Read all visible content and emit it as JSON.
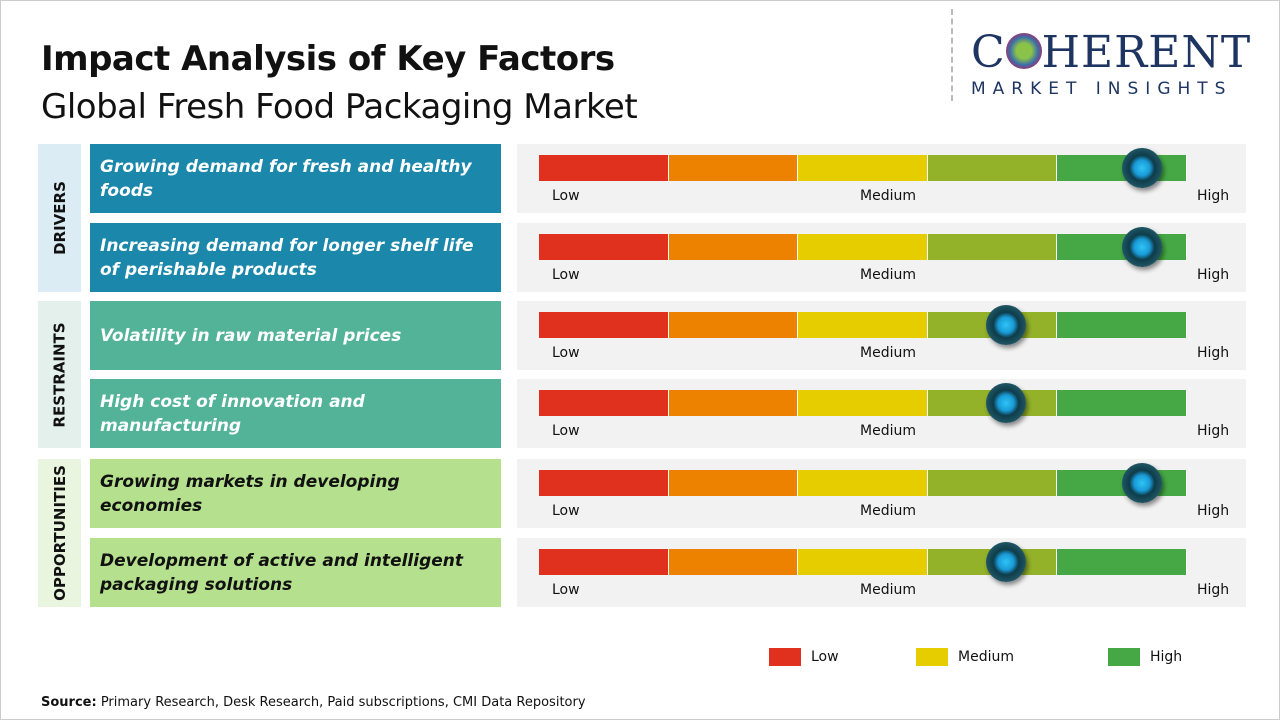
{
  "header": {
    "title": "Impact Analysis of Key Factors",
    "subtitle": "Global Fresh Food Packaging Market"
  },
  "logo": {
    "line1": "COHERENT",
    "line2": "MARKET INSIGHTS"
  },
  "chart_data": {
    "type": "table",
    "scale_labels": [
      "Low",
      "Medium",
      "High"
    ],
    "segment_colors": [
      "#e0301e",
      "#ec8200",
      "#e6cd00",
      "#94b12a",
      "#45a845"
    ],
    "categories": [
      {
        "name": "DRIVERS",
        "bg": "#dcecf4",
        "box_color": "#1a87ab",
        "text_color": "#ffffff",
        "factors": [
          {
            "label": "Growing demand for fresh and healthy foods",
            "impact": 0.93,
            "level": "High"
          },
          {
            "label": "Increasing demand for longer shelf life of perishable products",
            "impact": 0.93,
            "level": "High"
          }
        ]
      },
      {
        "name": "RESTRAINTS",
        "bg": "#e3f0ec",
        "box_color": "#52b399",
        "text_color": "#ffffff",
        "factors": [
          {
            "label": "Volatility in raw material prices",
            "impact": 0.72,
            "level": "Medium-High"
          },
          {
            "label": "High cost of innovation and manufacturing",
            "impact": 0.72,
            "level": "Medium-High"
          }
        ]
      },
      {
        "name": "OPPORTUNITIES",
        "bg": "#eaf5df",
        "box_color": "#b5e08e",
        "text_color": "#111111",
        "factors": [
          {
            "label": "Growing markets in developing economies",
            "impact": 0.93,
            "level": "High"
          },
          {
            "label": "Development of active and intelligent packaging solutions",
            "impact": 0.72,
            "level": "Medium-High"
          }
        ]
      }
    ],
    "legend": [
      {
        "label": "Low",
        "color": "#e0301e"
      },
      {
        "label": "Medium",
        "color": "#e6cd00"
      },
      {
        "label": "High",
        "color": "#45a845"
      }
    ]
  },
  "source": {
    "label": "Source:",
    "text": " Primary Research, Desk Research, Paid subscriptions, CMI Data Repository"
  }
}
